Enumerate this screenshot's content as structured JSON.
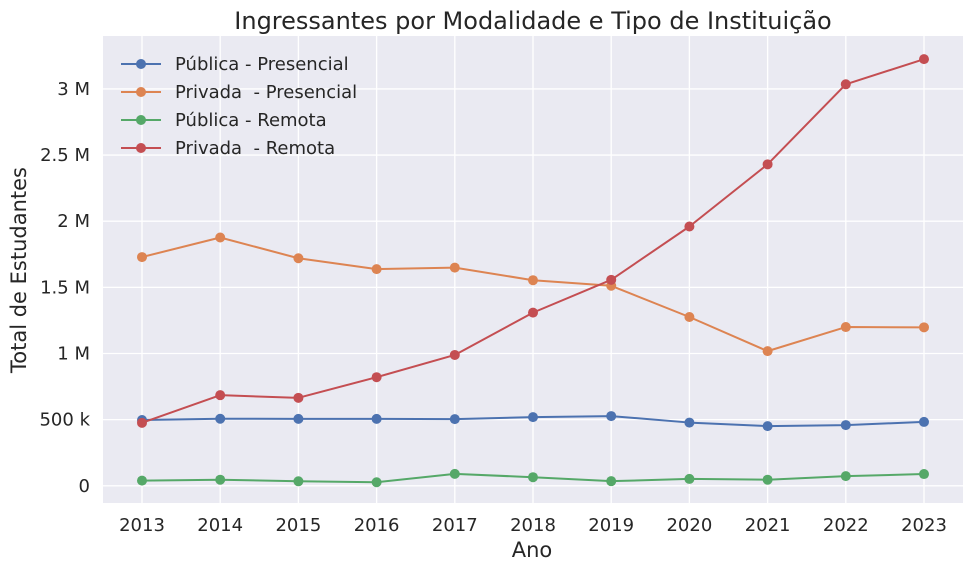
{
  "chart_data": {
    "type": "line",
    "title": "Ingressantes por Modalidade e Tipo de Instituição",
    "xlabel": "Ano",
    "ylabel": "Total de Estudantes",
    "x": [
      2013,
      2014,
      2015,
      2016,
      2017,
      2018,
      2019,
      2020,
      2021,
      2022,
      2023
    ],
    "ylim": [
      -130000,
      3400000
    ],
    "yticks": [
      0,
      500000,
      1000000,
      1500000,
      2000000,
      2500000,
      3000000
    ],
    "ytick_labels": [
      "0",
      "500 k",
      "1 M",
      "1.5 M",
      "2 M",
      "2.5 M",
      "3 M"
    ],
    "grid": true,
    "legend_position": "top-left",
    "series": [
      {
        "name": "Pública - Presencial",
        "color": "#4c72b0",
        "values": [
          497000,
          507000,
          506000,
          506000,
          504000,
          519000,
          527000,
          478000,
          451000,
          459000,
          483000
        ]
      },
      {
        "name": "Privada  - Presencial",
        "color": "#dd8452",
        "values": [
          1729000,
          1877000,
          1720000,
          1638000,
          1649000,
          1554000,
          1512000,
          1276000,
          1018000,
          1200000,
          1198000
        ]
      },
      {
        "name": "Pública - Remota",
        "color": "#55a868",
        "values": [
          39000,
          46000,
          34000,
          27000,
          90000,
          65000,
          35000,
          52000,
          46000,
          73000,
          89000
        ]
      },
      {
        "name": "Privada  - Remota",
        "color": "#c44e52",
        "values": [
          476000,
          685000,
          665000,
          821000,
          989000,
          1309000,
          1557000,
          1960000,
          2430000,
          3035000,
          3225000
        ]
      }
    ]
  }
}
